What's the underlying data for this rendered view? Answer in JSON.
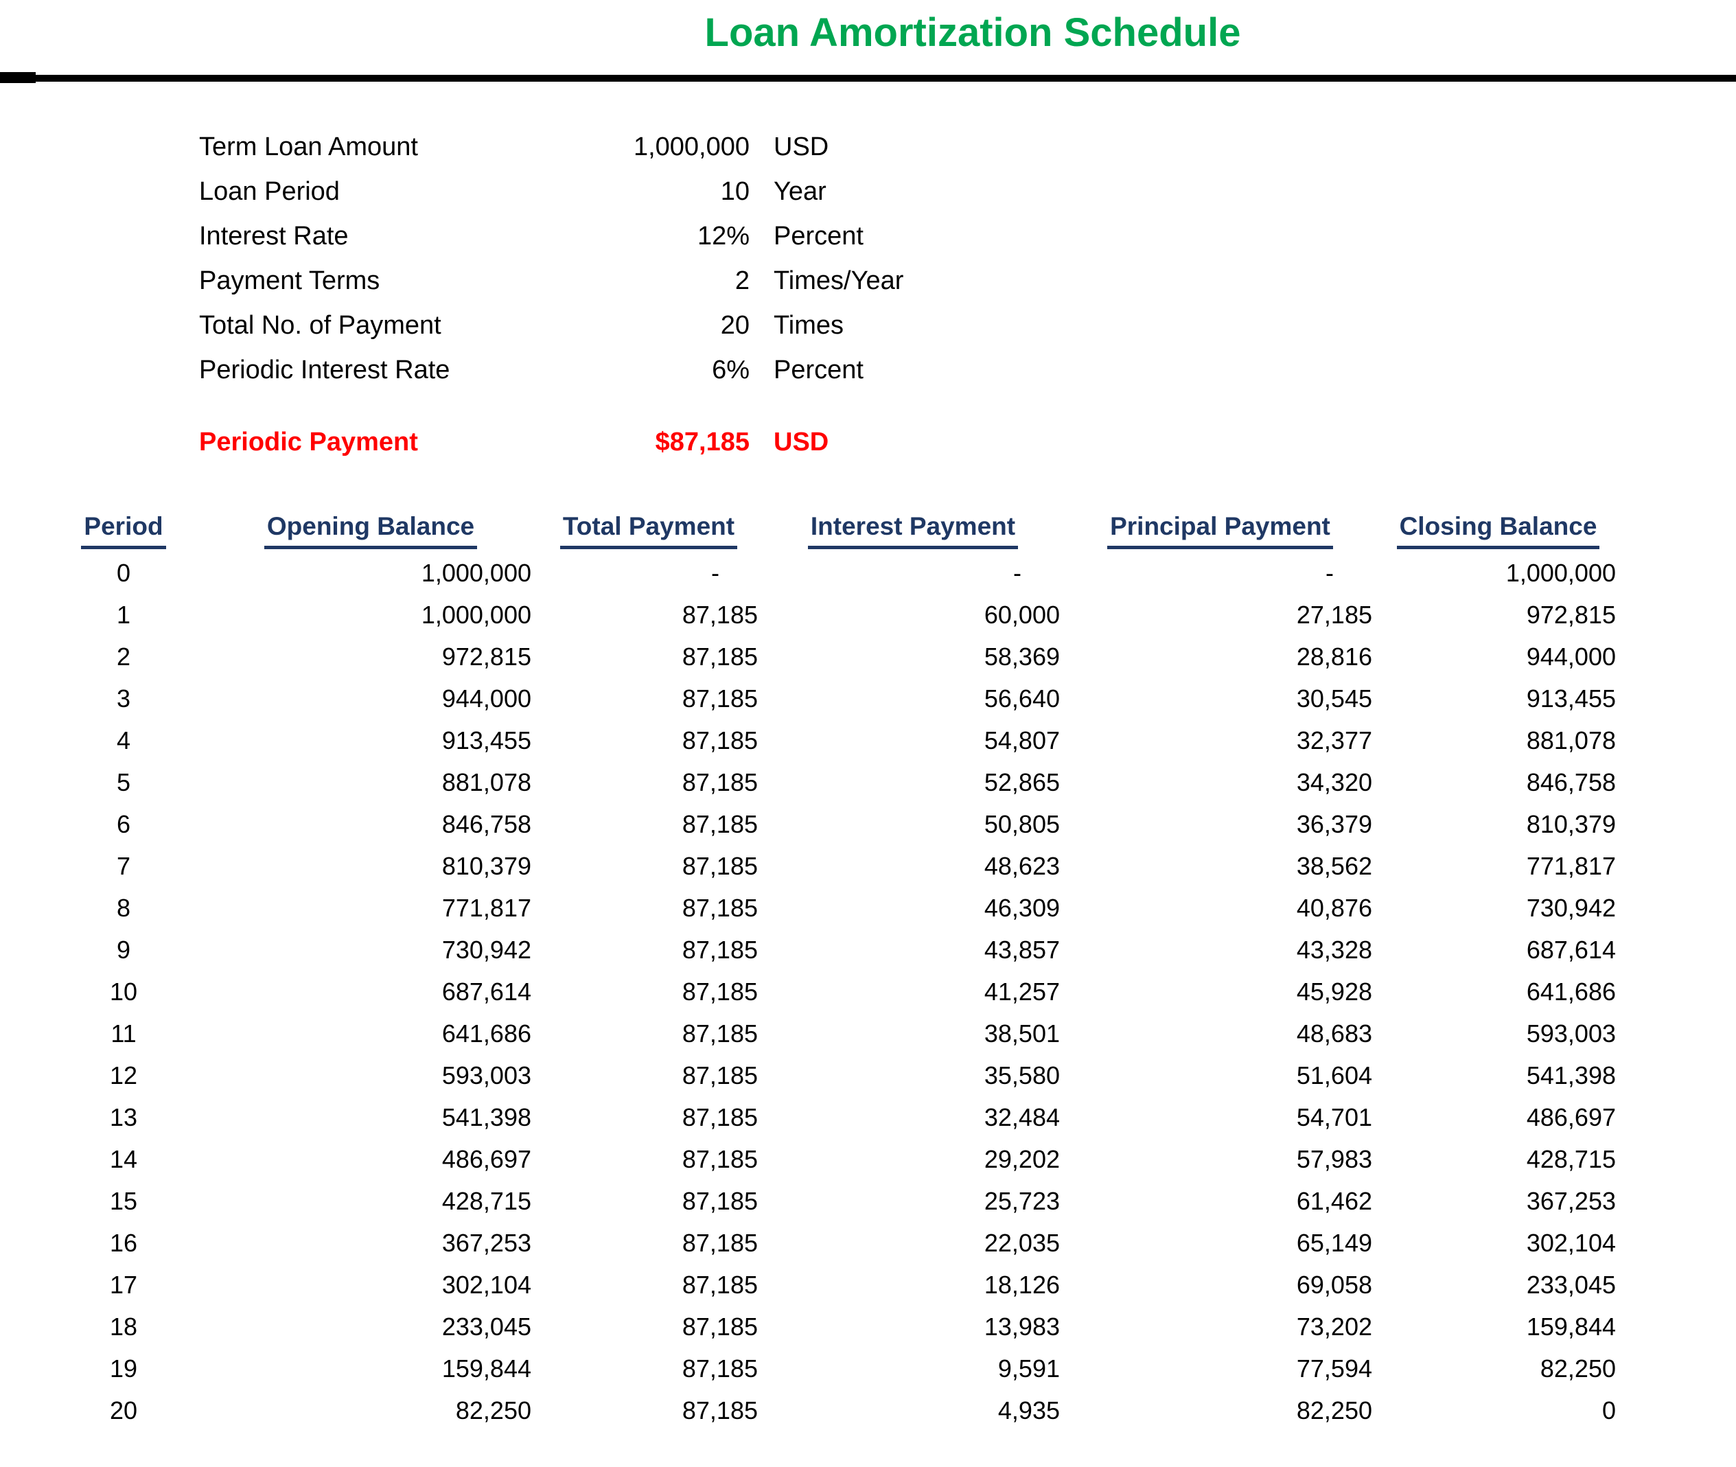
{
  "title": "Loan Amortization Schedule",
  "colors": {
    "title_green": "#00A651",
    "header_navy": "#1F3864",
    "accent_red": "#FF0000",
    "divider_black": "#000000"
  },
  "loan_details": {
    "rows": [
      {
        "label": "Term Loan Amount",
        "value": "1,000,000",
        "unit": "USD"
      },
      {
        "label": "Loan Period",
        "value": "10",
        "unit": "Year"
      },
      {
        "label": "Interest Rate",
        "value": "12%",
        "unit": "Percent"
      },
      {
        "label": "Payment Terms",
        "value": "2",
        "unit": "Times/Year"
      },
      {
        "label": "Total No. of Payment",
        "value": "20",
        "unit": "Times"
      },
      {
        "label": "Periodic Interest Rate",
        "value": "6%",
        "unit": "Percent"
      }
    ]
  },
  "periodic_payment": {
    "label": "Periodic Payment",
    "value": "$87,185",
    "unit": "USD"
  },
  "table": {
    "columns": [
      "Period",
      "Opening Balance",
      "Total Payment",
      "Interest Payment",
      "Principal Payment",
      "Closing Balance"
    ],
    "rows": [
      [
        "0",
        "1,000,000",
        "-",
        "-",
        "-",
        "1,000,000"
      ],
      [
        "1",
        "1,000,000",
        "87,185",
        "60,000",
        "27,185",
        "972,815"
      ],
      [
        "2",
        "972,815",
        "87,185",
        "58,369",
        "28,816",
        "944,000"
      ],
      [
        "3",
        "944,000",
        "87,185",
        "56,640",
        "30,545",
        "913,455"
      ],
      [
        "4",
        "913,455",
        "87,185",
        "54,807",
        "32,377",
        "881,078"
      ],
      [
        "5",
        "881,078",
        "87,185",
        "52,865",
        "34,320",
        "846,758"
      ],
      [
        "6",
        "846,758",
        "87,185",
        "50,805",
        "36,379",
        "810,379"
      ],
      [
        "7",
        "810,379",
        "87,185",
        "48,623",
        "38,562",
        "771,817"
      ],
      [
        "8",
        "771,817",
        "87,185",
        "46,309",
        "40,876",
        "730,942"
      ],
      [
        "9",
        "730,942",
        "87,185",
        "43,857",
        "43,328",
        "687,614"
      ],
      [
        "10",
        "687,614",
        "87,185",
        "41,257",
        "45,928",
        "641,686"
      ],
      [
        "11",
        "641,686",
        "87,185",
        "38,501",
        "48,683",
        "593,003"
      ],
      [
        "12",
        "593,003",
        "87,185",
        "35,580",
        "51,604",
        "541,398"
      ],
      [
        "13",
        "541,398",
        "87,185",
        "32,484",
        "54,701",
        "486,697"
      ],
      [
        "14",
        "486,697",
        "87,185",
        "29,202",
        "57,983",
        "428,715"
      ],
      [
        "15",
        "428,715",
        "87,185",
        "25,723",
        "61,462",
        "367,253"
      ],
      [
        "16",
        "367,253",
        "87,185",
        "22,035",
        "65,149",
        "302,104"
      ],
      [
        "17",
        "302,104",
        "87,185",
        "18,126",
        "69,058",
        "233,045"
      ],
      [
        "18",
        "233,045",
        "87,185",
        "13,983",
        "73,202",
        "159,844"
      ],
      [
        "19",
        "159,844",
        "87,185",
        "9,591",
        "77,594",
        "82,250"
      ],
      [
        "20",
        "82,250",
        "87,185",
        "4,935",
        "82,250",
        "0"
      ]
    ]
  }
}
